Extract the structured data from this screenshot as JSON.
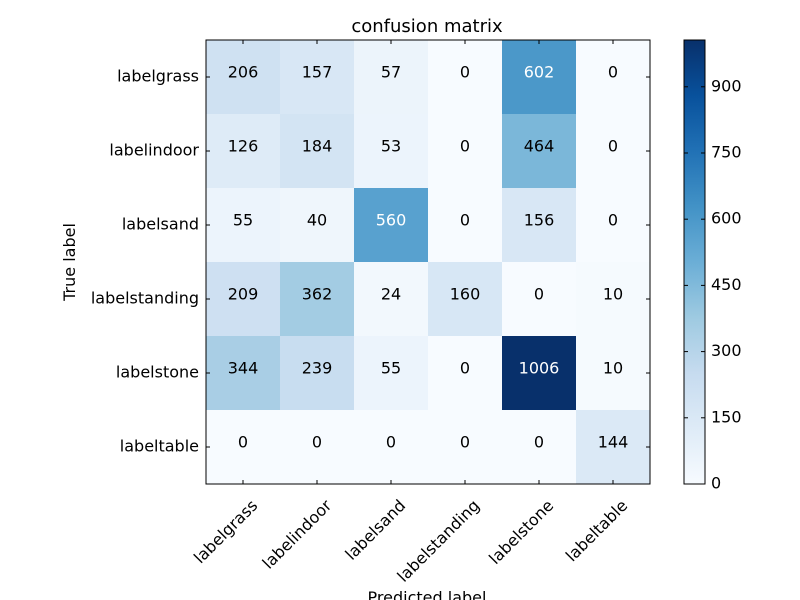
{
  "chart_data": {
    "type": "heatmap",
    "title": "confusion matrix",
    "xlabel": "Predicted label",
    "ylabel": "True label",
    "x_categories": [
      "labelgrass",
      "labelindoor",
      "labelsand",
      "labelstanding",
      "labelstone",
      "labeltable"
    ],
    "y_categories": [
      "labelgrass",
      "labelindoor",
      "labelsand",
      "labelstanding",
      "labelstone",
      "labeltable"
    ],
    "values": [
      [
        206,
        157,
        57,
        0,
        602,
        0
      ],
      [
        126,
        184,
        53,
        0,
        464,
        0
      ],
      [
        55,
        40,
        560,
        0,
        156,
        0
      ],
      [
        209,
        362,
        24,
        160,
        0,
        10
      ],
      [
        344,
        239,
        55,
        0,
        1006,
        10
      ],
      [
        0,
        0,
        0,
        0,
        0,
        144
      ]
    ],
    "colormap": "Blues",
    "colorbar": {
      "vmin": 0,
      "vmax": 1006,
      "ticks": [
        0,
        150,
        300,
        450,
        600,
        750,
        900
      ]
    },
    "grid": false
  }
}
